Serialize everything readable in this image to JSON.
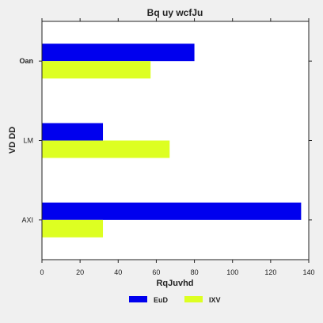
{
  "chart_data": {
    "type": "bar",
    "orientation": "horizontal",
    "title": "Bq uy  wcfJu",
    "xlabel": "RqJuvhd",
    "ylabel": "VD DD",
    "categories": [
      "Oan",
      "LM",
      "AXI"
    ],
    "series": [
      {
        "name": "EuD",
        "color": "#0000ee",
        "values": [
          80,
          32,
          136
        ]
      },
      {
        "name": "IXV",
        "color": "#ddff22",
        "values": [
          57,
          67,
          32
        ]
      }
    ],
    "xlim": [
      0,
      140
    ],
    "xticks": [
      0,
      20,
      40,
      60,
      80,
      100,
      120,
      140
    ],
    "grid": false,
    "legend": "bottom-center"
  }
}
